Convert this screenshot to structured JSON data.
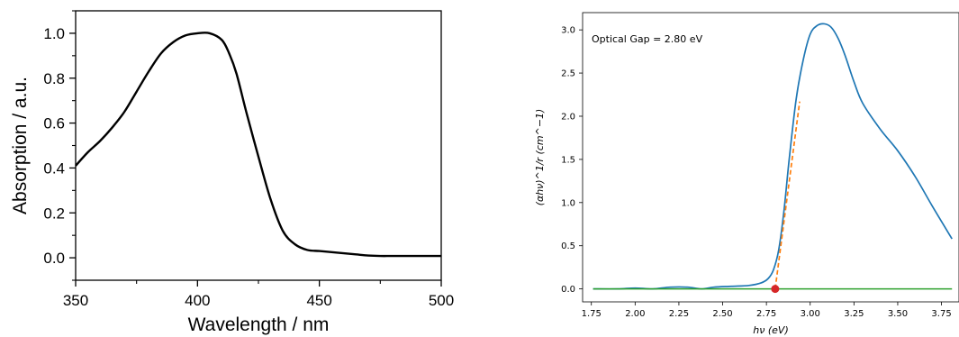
{
  "chart_data": [
    {
      "type": "line",
      "xlabel": "Wavelength / nm",
      "ylabel": "Absorption / a.u.",
      "xlim": [
        350,
        500
      ],
      "ylim": [
        -0.1,
        1.1
      ],
      "xticks": [
        "350",
        "400",
        "450",
        "500"
      ],
      "yticks": [
        "0.0",
        "0.2",
        "0.4",
        "0.6",
        "0.8",
        "1.0"
      ],
      "grid": false,
      "color": "#000000",
      "series": [
        {
          "x": [
            350,
            355,
            360,
            365,
            370,
            375,
            380,
            385,
            390,
            395,
            400,
            405,
            410,
            413,
            416,
            420,
            425,
            430,
            435,
            440,
            445,
            450,
            455,
            460,
            465,
            470,
            475,
            480,
            490,
            500
          ],
          "values": [
            0.41,
            0.47,
            0.52,
            0.58,
            0.65,
            0.74,
            0.83,
            0.91,
            0.96,
            0.99,
            1.0,
            1.0,
            0.97,
            0.91,
            0.82,
            0.65,
            0.45,
            0.26,
            0.12,
            0.06,
            0.035,
            0.03,
            0.025,
            0.02,
            0.015,
            0.01,
            0.008,
            0.008,
            0.008,
            0.008
          ]
        }
      ]
    },
    {
      "type": "line",
      "title": "",
      "annotation": "Optical Gap = 2.80 eV",
      "xlabel": "hν (eV)",
      "ylabel": "(αhν)^1/r (cm^−1)",
      "xlim": [
        1.7,
        3.85
      ],
      "ylim": [
        -0.15,
        3.2
      ],
      "xticks": [
        "1.75",
        "2.00",
        "2.25",
        "2.50",
        "2.75",
        "3.00",
        "3.25",
        "3.50",
        "3.75"
      ],
      "yticks": [
        "0.0",
        "0.5",
        "1.0",
        "1.5",
        "2.0",
        "2.5",
        "3.0"
      ],
      "grid": false,
      "series": [
        {
          "color": "#1f77b4",
          "x": [
            1.76,
            1.9,
            2.0,
            2.1,
            2.2,
            2.3,
            2.38,
            2.45,
            2.55,
            2.65,
            2.72,
            2.76,
            2.79,
            2.82,
            2.85,
            2.88,
            2.92,
            2.96,
            3.0,
            3.04,
            3.08,
            3.12,
            3.16,
            3.2,
            3.25,
            3.3,
            3.4,
            3.5,
            3.6,
            3.7,
            3.81
          ],
          "values": [
            0.0,
            0.0,
            0.01,
            0.0,
            0.02,
            0.02,
            0.0,
            0.02,
            0.03,
            0.04,
            0.07,
            0.12,
            0.22,
            0.45,
            0.9,
            1.5,
            2.2,
            2.65,
            2.95,
            3.05,
            3.07,
            3.03,
            2.9,
            2.7,
            2.4,
            2.15,
            1.85,
            1.6,
            1.3,
            0.95,
            0.58
          ]
        },
        {
          "color": "#ff7f0e",
          "style": "dashed",
          "x": [
            2.8,
            2.94
          ],
          "values": [
            0.0,
            2.17
          ]
        },
        {
          "color": "#2ca02c",
          "x": [
            1.76,
            3.81
          ],
          "values": [
            0.0,
            0.0
          ]
        }
      ],
      "marker": {
        "x": 2.8,
        "y": 0.0,
        "color": "#d62728"
      }
    }
  ]
}
